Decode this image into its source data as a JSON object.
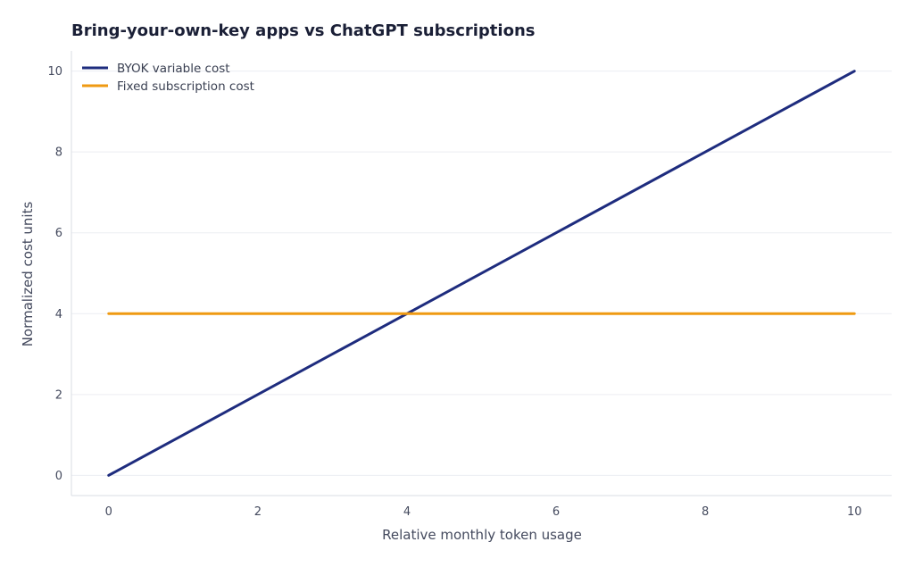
{
  "chart_data": {
    "type": "line",
    "title": "Bring-your-own-key apps vs ChatGPT subscriptions",
    "xlabel": "Relative monthly token usage",
    "ylabel": "Normalized cost units",
    "xlim": [
      -0.5,
      10.5
    ],
    "ylim": [
      -0.5,
      10.5
    ],
    "x_ticks": [
      0,
      2,
      4,
      6,
      8,
      10
    ],
    "y_ticks": [
      0,
      2,
      4,
      6,
      8,
      10
    ],
    "x_tick_labels": [
      "0",
      "2",
      "4",
      "6",
      "8",
      "10"
    ],
    "y_tick_labels": [
      "0",
      "2",
      "4",
      "6",
      "8",
      "10"
    ],
    "grid": "y-only",
    "legend_position": "top-left",
    "series": [
      {
        "name": "BYOK variable cost",
        "color": "#1e2c7e",
        "x": [
          0,
          10
        ],
        "y": [
          0,
          10
        ]
      },
      {
        "name": "Fixed subscription cost",
        "color": "#ef9a12",
        "x": [
          0,
          10
        ],
        "y": [
          4,
          4
        ]
      }
    ]
  }
}
